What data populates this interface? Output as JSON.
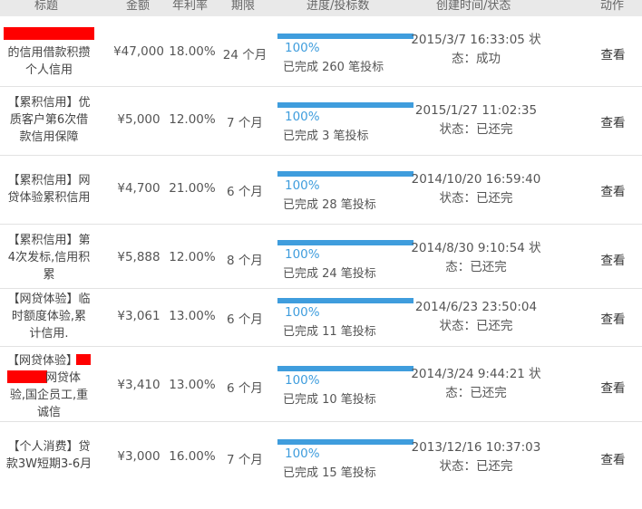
{
  "headers": {
    "title": "标题",
    "amount": "金额",
    "rate": "年利率",
    "term": "期限",
    "progress": "进度/投标数",
    "created": "创建时间/状态",
    "action": "动作"
  },
  "rows": [
    {
      "title_lines": [
        "",
        "的信用借款积攒",
        "个人信用"
      ],
      "amount": "¥47,000",
      "rate": "18.00%",
      "term": "24 个月",
      "progress_pct": "100%",
      "progress_value": 1.0,
      "bids_text": "已完成 260 笔投标",
      "status_lines": [
        "2015/3/7 16:33:05 状",
        "态：成功"
      ],
      "action": "查看"
    },
    {
      "title_lines": [
        "【累积信用】优",
        "质客户第6次借",
        "款信用保障"
      ],
      "amount": "¥5,000",
      "rate": "12.00%",
      "term": "7 个月",
      "progress_pct": "100%",
      "progress_value": 1.0,
      "bids_text": "已完成 3 笔投标",
      "status_lines": [
        "2015/1/27 11:02:35",
        "状态：已还完"
      ],
      "action": "查看"
    },
    {
      "title_lines": [
        "【累积信用】网",
        "贷体验累积信用"
      ],
      "amount": "¥4,700",
      "rate": "21.00%",
      "term": "6 个月",
      "progress_pct": "100%",
      "progress_value": 1.0,
      "bids_text": "已完成 28 笔投标",
      "status_lines": [
        "2014/10/20 16:59:40",
        "状态：已还完"
      ],
      "action": "查看"
    },
    {
      "title_lines": [
        "【累积信用】第",
        "4次发标,信用积",
        "累"
      ],
      "amount": "¥5,888",
      "rate": "12.00%",
      "term": "8 个月",
      "progress_pct": "100%",
      "progress_value": 1.0,
      "bids_text": "已完成 24 笔投标",
      "status_lines": [
        "2014/8/30 9:10:54 状",
        "态：已还完"
      ],
      "action": "查看"
    },
    {
      "title_lines": [
        "【网贷体验】临",
        "时额度体验,累",
        "计信用."
      ],
      "amount": "¥3,061",
      "rate": "13.00%",
      "term": "6 个月",
      "progress_pct": "100%",
      "progress_value": 1.0,
      "bids_text": "已完成 11 笔投标",
      "status_lines": [
        "2014/6/23 23:50:04",
        "状态：已还完"
      ],
      "action": "查看"
    },
    {
      "title_lines": [
        "【网贷体验】",
        "网贷体",
        "验,国企员工,重",
        "诚信"
      ],
      "amount": "¥3,410",
      "rate": "13.00%",
      "term": "6 个月",
      "progress_pct": "100%",
      "progress_value": 1.0,
      "bids_text": "已完成 10 笔投标",
      "status_lines": [
        "2014/3/24 9:44:21 状",
        "态：已还完"
      ],
      "action": "查看"
    },
    {
      "title_lines": [
        "【个人消费】贷",
        "款3W短期3-6月"
      ],
      "amount": "¥3,000",
      "rate": "16.00%",
      "term": "7 个月",
      "progress_pct": "100%",
      "progress_value": 1.0,
      "bids_text": "已完成 15 笔投标",
      "status_lines": [
        "2013/12/16 10:37:03",
        "状态：已还完"
      ],
      "action": "查看"
    }
  ]
}
